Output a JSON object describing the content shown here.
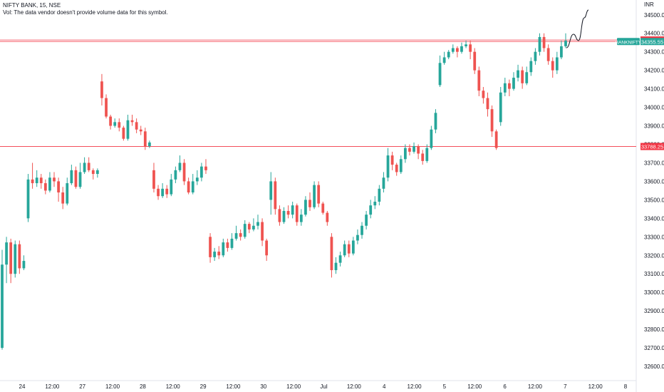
{
  "header": {
    "symbol_line": "NIFTY BANK, 15, NSE",
    "volume_note": "Vol: The data vendor doesn't provide volume data for this symbol."
  },
  "currency_label": "INR",
  "colors": {
    "up": "#26a69a",
    "down": "#ef5350",
    "level_line": "#f23645",
    "ticker_badge": "#26a69a",
    "drawing": "#131722"
  },
  "chart_data": {
    "type": "candlestick",
    "title": "",
    "ylim": [
      32500,
      34580
    ],
    "y_ticks": [
      32600,
      32700,
      32800,
      32900,
      33000,
      33100,
      33200,
      33300,
      33400,
      33500,
      33600,
      33700,
      33800,
      33900,
      34000,
      34100,
      34200,
      34300,
      34400,
      34500
    ],
    "x_ticks": [
      "24",
      "12:00",
      "27",
      "12:00",
      "28",
      "12:00",
      "29",
      "12:00",
      "30",
      "12:00",
      "Jul",
      "12:00",
      "4",
      "12:00",
      "5",
      "12:00",
      "6",
      "12:00",
      "7",
      "12:00",
      "8"
    ],
    "price_labels": [
      {
        "label": "",
        "value": "34363.95",
        "kind": "level"
      },
      {
        "label": "BANKNIFTY",
        "value": "34355.55",
        "kind": "last_price"
      },
      {
        "label": "",
        "value": "33788.25",
        "kind": "level"
      }
    ],
    "horizontal_levels": [
      34363.95,
      34355.55,
      33788.25
    ],
    "candles": [
      [
        32700,
        33150,
        32690,
        33230
      ],
      [
        33150,
        33270,
        33050,
        33300
      ],
      [
        33270,
        33100,
        33050,
        33290
      ],
      [
        33100,
        33260,
        33080,
        33280
      ],
      [
        33260,
        33130,
        33100,
        33280
      ],
      [
        33130,
        33170,
        33120,
        33200
      ],
      [
        33400,
        33610,
        33380,
        33640
      ],
      [
        33610,
        33590,
        33560,
        33700
      ],
      [
        33590,
        33620,
        33570,
        33660
      ],
      [
        33620,
        33590,
        33560,
        33640
      ],
      [
        33590,
        33550,
        33530,
        33610
      ],
      [
        33550,
        33620,
        33540,
        33650
      ],
      [
        33620,
        33600,
        33570,
        33650
      ],
      [
        33600,
        33540,
        33490,
        33620
      ],
      [
        33540,
        33480,
        33450,
        33570
      ],
      [
        33480,
        33590,
        33470,
        33620
      ],
      [
        33590,
        33660,
        33580,
        33690
      ],
      [
        33660,
        33570,
        33560,
        33680
      ],
      [
        33570,
        33650,
        33560,
        33700
      ],
      [
        33650,
        33700,
        33640,
        33730
      ],
      [
        33700,
        33660,
        33650,
        33730
      ],
      [
        33660,
        33640,
        33610,
        33670
      ],
      [
        33640,
        33660,
        33620,
        33670
      ],
      [
        34140,
        34050,
        34010,
        34180
      ],
      [
        34050,
        33950,
        33940,
        34070
      ],
      [
        33950,
        33900,
        33880,
        33960
      ],
      [
        33900,
        33920,
        33890,
        33940
      ],
      [
        33920,
        33890,
        33870,
        33940
      ],
      [
        33890,
        33830,
        33820,
        33900
      ],
      [
        33830,
        33930,
        33820,
        33960
      ],
      [
        33930,
        33920,
        33900,
        33960
      ],
      [
        33920,
        33880,
        33860,
        33940
      ],
      [
        33880,
        33870,
        33850,
        33900
      ],
      [
        33870,
        33790,
        33770,
        33890
      ],
      [
        33790,
        33810,
        33780,
        33820
      ],
      [
        33660,
        33560,
        33540,
        33700
      ],
      [
        33560,
        33520,
        33500,
        33580
      ],
      [
        33520,
        33560,
        33510,
        33590
      ],
      [
        33560,
        33530,
        33510,
        33580
      ],
      [
        33530,
        33610,
        33520,
        33640
      ],
      [
        33610,
        33660,
        33590,
        33680
      ],
      [
        33660,
        33700,
        33650,
        33740
      ],
      [
        33700,
        33600,
        33580,
        33720
      ],
      [
        33600,
        33540,
        33530,
        33620
      ],
      [
        33540,
        33600,
        33530,
        33640
      ],
      [
        33600,
        33620,
        33580,
        33660
      ],
      [
        33620,
        33680,
        33600,
        33700
      ],
      [
        33680,
        33660,
        33640,
        33720
      ],
      [
        33300,
        33190,
        33160,
        33320
      ],
      [
        33190,
        33220,
        33170,
        33240
      ],
      [
        33220,
        33200,
        33180,
        33250
      ],
      [
        33200,
        33270,
        33190,
        33290
      ],
      [
        33270,
        33240,
        33220,
        33290
      ],
      [
        33240,
        33290,
        33230,
        33320
      ],
      [
        33290,
        33320,
        33280,
        33360
      ],
      [
        33320,
        33300,
        33280,
        33340
      ],
      [
        33300,
        33370,
        33290,
        33390
      ],
      [
        33370,
        33340,
        33320,
        33380
      ],
      [
        33340,
        33360,
        33330,
        33400
      ],
      [
        33360,
        33380,
        33340,
        33420
      ],
      [
        33380,
        33280,
        33250,
        33400
      ],
      [
        33280,
        33200,
        33170,
        33290
      ],
      [
        33500,
        33600,
        33420,
        33650
      ],
      [
        33600,
        33450,
        33420,
        33620
      ],
      [
        33450,
        33380,
        33360,
        33470
      ],
      [
        33380,
        33440,
        33370,
        33460
      ],
      [
        33440,
        33420,
        33400,
        33470
      ],
      [
        33420,
        33470,
        33400,
        33490
      ],
      [
        33470,
        33380,
        33360,
        33480
      ],
      [
        33380,
        33420,
        33360,
        33450
      ],
      [
        33420,
        33500,
        33410,
        33520
      ],
      [
        33500,
        33460,
        33440,
        33540
      ],
      [
        33460,
        33580,
        33450,
        33600
      ],
      [
        33580,
        33480,
        33460,
        33600
      ],
      [
        33480,
        33430,
        33420,
        33490
      ],
      [
        33430,
        33380,
        33360,
        33440
      ],
      [
        33300,
        33120,
        33080,
        33320
      ],
      [
        33120,
        33160,
        33100,
        33190
      ],
      [
        33160,
        33200,
        33140,
        33220
      ],
      [
        33200,
        33260,
        33190,
        33280
      ],
      [
        33260,
        33210,
        33190,
        33280
      ],
      [
        33210,
        33280,
        33200,
        33300
      ],
      [
        33280,
        33310,
        33260,
        33340
      ],
      [
        33310,
        33360,
        33290,
        33380
      ],
      [
        33360,
        33420,
        33340,
        33440
      ],
      [
        33420,
        33470,
        33400,
        33500
      ],
      [
        33470,
        33490,
        33450,
        33520
      ],
      [
        33490,
        33560,
        33470,
        33580
      ],
      [
        33560,
        33620,
        33540,
        33650
      ],
      [
        33620,
        33740,
        33600,
        33780
      ],
      [
        33740,
        33690,
        33660,
        33760
      ],
      [
        33690,
        33650,
        33630,
        33700
      ],
      [
        33650,
        33720,
        33640,
        33740
      ],
      [
        33720,
        33780,
        33700,
        33800
      ],
      [
        33780,
        33760,
        33740,
        33800
      ],
      [
        33760,
        33790,
        33750,
        33810
      ],
      [
        33790,
        33750,
        33720,
        33800
      ],
      [
        33750,
        33710,
        33690,
        33770
      ],
      [
        33710,
        33780,
        33700,
        33800
      ],
      [
        33780,
        33880,
        33770,
        33900
      ],
      [
        33880,
        33970,
        33860,
        33990
      ],
      [
        34120,
        34240,
        34110,
        34280
      ],
      [
        34240,
        34270,
        34230,
        34300
      ],
      [
        34270,
        34300,
        34260,
        34310
      ],
      [
        34300,
        34320,
        34290,
        34340
      ],
      [
        34320,
        34300,
        34270,
        34330
      ],
      [
        34300,
        34330,
        34290,
        34350
      ],
      [
        34330,
        34340,
        34320,
        34360
      ],
      [
        34340,
        34300,
        34260,
        34360
      ],
      [
        34300,
        34200,
        34180,
        34320
      ],
      [
        34200,
        34090,
        34060,
        34220
      ],
      [
        34090,
        34050,
        34020,
        34110
      ],
      [
        34050,
        33990,
        33950,
        34080
      ],
      [
        33990,
        33870,
        33840,
        34010
      ],
      [
        33870,
        33780,
        33770,
        33880
      ],
      [
        33920,
        34080,
        33900,
        34110
      ],
      [
        34080,
        34130,
        34060,
        34160
      ],
      [
        34130,
        34100,
        34060,
        34150
      ],
      [
        34100,
        34160,
        34090,
        34190
      ],
      [
        34160,
        34200,
        34140,
        34230
      ],
      [
        34200,
        34130,
        34100,
        34220
      ],
      [
        34130,
        34190,
        34120,
        34220
      ],
      [
        34190,
        34250,
        34170,
        34270
      ],
      [
        34250,
        34300,
        34230,
        34320
      ],
      [
        34300,
        34380,
        34280,
        34400
      ],
      [
        34380,
        34320,
        34300,
        34400
      ],
      [
        34320,
        34250,
        34230,
        34340
      ],
      [
        34250,
        34200,
        34160,
        34270
      ],
      [
        34200,
        34270,
        34180,
        34300
      ],
      [
        34270,
        34330,
        34260,
        34360
      ],
      [
        34330,
        34360,
        34320,
        34400
      ]
    ],
    "drawing_path": [
      [
        795,
        67
      ],
      [
        805,
        48
      ],
      [
        812,
        57
      ],
      [
        820,
        25
      ],
      [
        826,
        14
      ]
    ],
    "grid": false,
    "legend": "none"
  }
}
